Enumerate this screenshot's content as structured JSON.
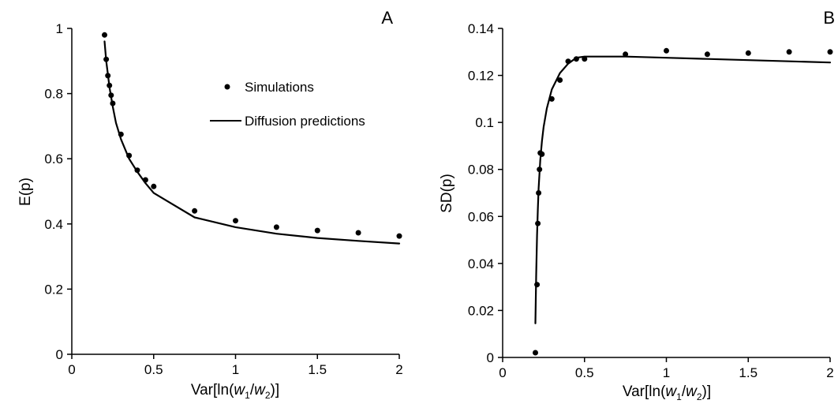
{
  "chart_data": [
    {
      "type": "line",
      "panel_label": "A",
      "xlabel": "Var[ln(w1/w2)]",
      "ylabel": "E(p)",
      "xlim": [
        0,
        2
      ],
      "ylim": [
        0,
        1
      ],
      "x_ticks": [
        "0",
        "0.5",
        "1",
        "1.5",
        "2"
      ],
      "y_ticks": [
        "0",
        "0.2",
        "0.4",
        "0.6",
        "0.8",
        "1"
      ],
      "grid": false,
      "legend": {
        "placement": "top-right",
        "entries": [
          "Simulations",
          "Diffusion predictions"
        ]
      },
      "series": [
        {
          "name": "Simulations",
          "style": "points",
          "x": [
            0.2,
            0.21,
            0.22,
            0.23,
            0.24,
            0.25,
            0.3,
            0.35,
            0.4,
            0.45,
            0.5,
            0.75,
            1.0,
            1.25,
            1.5,
            1.75,
            2.0
          ],
          "y": [
            0.98,
            0.905,
            0.855,
            0.825,
            0.795,
            0.77,
            0.675,
            0.61,
            0.565,
            0.535,
            0.515,
            0.44,
            0.41,
            0.39,
            0.38,
            0.373,
            0.363
          ]
        },
        {
          "name": "Diffusion predictions",
          "style": "line",
          "x": [
            0.2,
            0.21,
            0.22,
            0.23,
            0.24,
            0.25,
            0.27,
            0.3,
            0.35,
            0.4,
            0.45,
            0.5,
            0.75,
            1.0,
            1.25,
            1.5,
            1.75,
            2.0
          ],
          "y": [
            0.96,
            0.9,
            0.86,
            0.82,
            0.79,
            0.76,
            0.71,
            0.66,
            0.6,
            0.56,
            0.525,
            0.495,
            0.42,
            0.39,
            0.37,
            0.357,
            0.348,
            0.34
          ]
        }
      ]
    },
    {
      "type": "line",
      "panel_label": "B",
      "xlabel": "Var[ln(w1/w2)]",
      "ylabel": "SD(p)",
      "xlim": [
        0,
        2
      ],
      "ylim": [
        0,
        0.14
      ],
      "x_ticks": [
        "0",
        "0.5",
        "1",
        "1.5",
        "2"
      ],
      "y_ticks": [
        "0",
        "0.02",
        "0.04",
        "0.06",
        "0.08",
        "0.1",
        "0.12",
        "0.14"
      ],
      "grid": false,
      "series": [
        {
          "name": "Simulations",
          "style": "points",
          "x": [
            0.2,
            0.21,
            0.215,
            0.22,
            0.225,
            0.23,
            0.24,
            0.3,
            0.35,
            0.4,
            0.45,
            0.5,
            0.75,
            1.0,
            1.25,
            1.5,
            1.75,
            2.0
          ],
          "y": [
            0.002,
            0.031,
            0.057,
            0.07,
            0.08,
            0.087,
            0.0865,
            0.11,
            0.118,
            0.126,
            0.127,
            0.127,
            0.129,
            0.1305,
            0.129,
            0.1295,
            0.13,
            0.13
          ]
        },
        {
          "name": "Diffusion predictions",
          "style": "line",
          "x": [
            0.2,
            0.205,
            0.21,
            0.215,
            0.22,
            0.23,
            0.24,
            0.25,
            0.27,
            0.3,
            0.35,
            0.4,
            0.45,
            0.5,
            0.75,
            1.0,
            1.25,
            1.5,
            1.75,
            2.0
          ],
          "y": [
            0.0145,
            0.035,
            0.052,
            0.063,
            0.072,
            0.084,
            0.092,
            0.098,
            0.106,
            0.114,
            0.121,
            0.125,
            0.1275,
            0.128,
            0.128,
            0.1275,
            0.127,
            0.1265,
            0.126,
            0.1255
          ]
        }
      ]
    }
  ]
}
